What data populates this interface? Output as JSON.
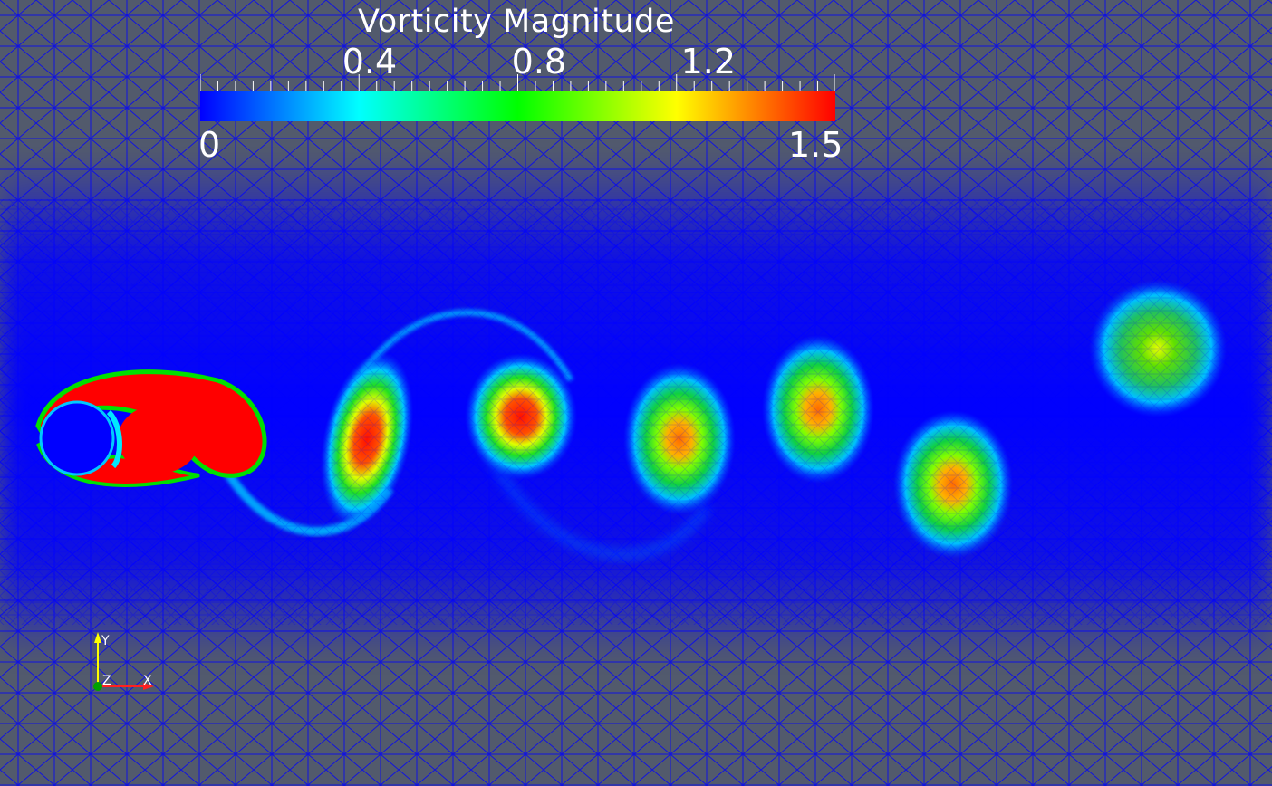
{
  "colorbar": {
    "title": "Vorticity Magnitude",
    "min_label": "0",
    "max_label": "1.5",
    "tick_labels": [
      "0.4",
      "0.8",
      "1.2"
    ],
    "tick_values": [
      0.4,
      0.8,
      1.2
    ],
    "range": [
      0,
      1.5
    ],
    "colormap": [
      "#0000ff",
      "#00ffff",
      "#00ff00",
      "#ffff00",
      "#ff0000"
    ]
  },
  "orientation_axes": {
    "x_label": "X",
    "y_label": "Y",
    "z_label": "Z",
    "x_color": "#ff2020",
    "y_color": "#ffff00",
    "z_color": "#00a000"
  },
  "colors": {
    "background": "#525a6c",
    "mesh_lines": "#0000ff",
    "field_low": "#0000ff"
  }
}
